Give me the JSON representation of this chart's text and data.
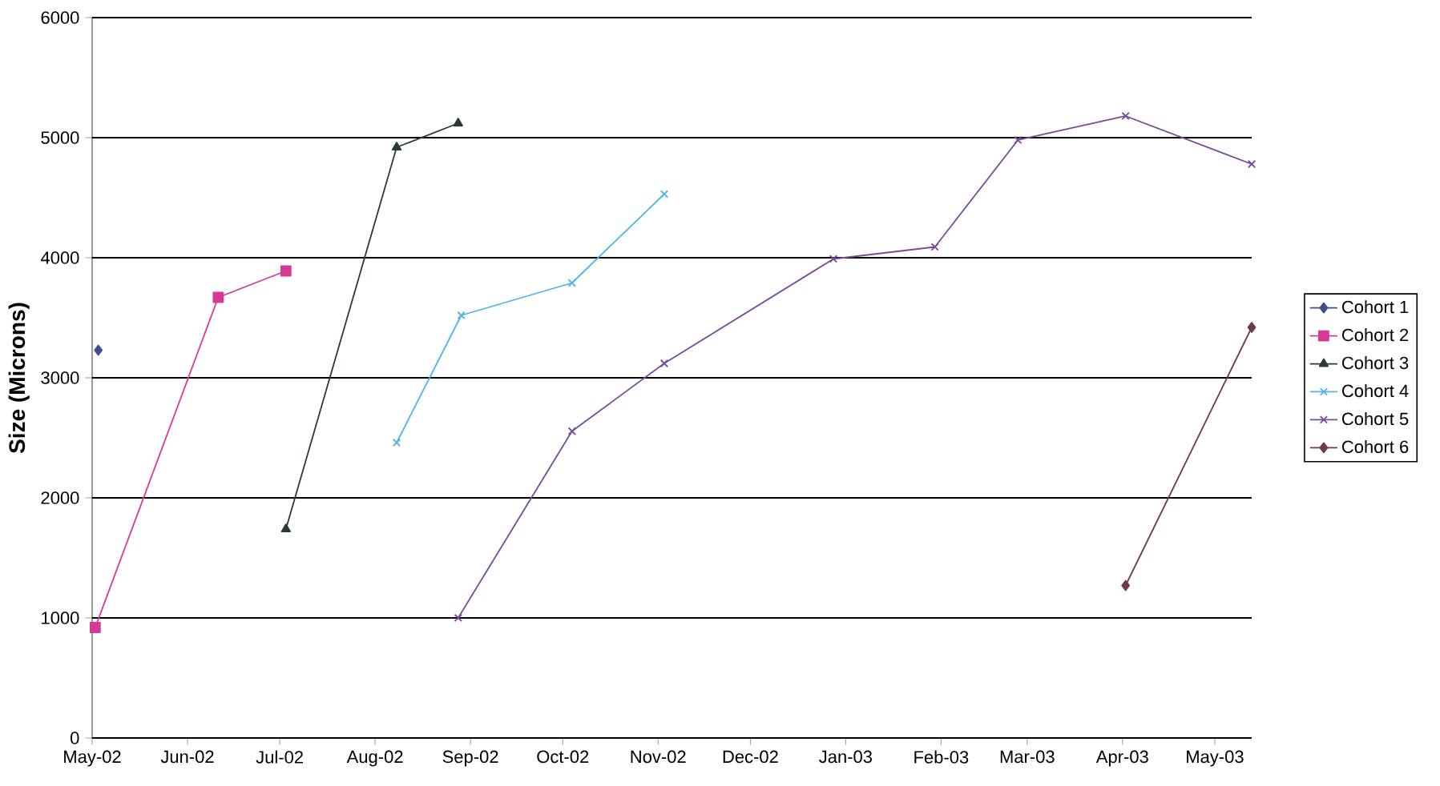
{
  "chart_data": {
    "type": "line",
    "ylabel": "Size (Microns)",
    "xlim": [
      "2002-05-01",
      "2003-05-13"
    ],
    "ylim": [
      0,
      6000
    ],
    "xticks": [
      {
        "value": "2002-05-01",
        "label": "May-02"
      },
      {
        "value": "2002-06-01",
        "label": "Jun-02"
      },
      {
        "value": "2002-07-01",
        "label": "Jul-02"
      },
      {
        "value": "2002-08-01",
        "label": "Aug-02"
      },
      {
        "value": "2002-09-01",
        "label": "Sep-02"
      },
      {
        "value": "2002-10-01",
        "label": "Oct-02"
      },
      {
        "value": "2002-11-01",
        "label": "Nov-02"
      },
      {
        "value": "2002-12-01",
        "label": "Dec-02"
      },
      {
        "value": "2003-01-01",
        "label": "Jan-03"
      },
      {
        "value": "2003-02-01",
        "label": "Feb-03"
      },
      {
        "value": "2003-03-01",
        "label": "Mar-03"
      },
      {
        "value": "2003-04-01",
        "label": "Apr-03"
      },
      {
        "value": "2003-05-01",
        "label": "May-03"
      }
    ],
    "yticks": [
      0,
      1000,
      2000,
      3000,
      4000,
      5000,
      6000
    ],
    "grid": "y",
    "legend": "right",
    "series": [
      {
        "name": "Cohort 1",
        "color": "#3f4f8f",
        "marker": "diamond",
        "x": [
          "2002-05-03"
        ],
        "values": [
          3230
        ]
      },
      {
        "name": "Cohort 2",
        "color": "#d63a96",
        "marker": "square",
        "x": [
          "2002-05-02",
          "2002-06-11",
          "2002-07-03"
        ],
        "values": [
          920,
          3670,
          3890
        ]
      },
      {
        "name": "Cohort 3",
        "color": "#2a3a3a",
        "marker": "triangle",
        "x": [
          "2002-07-03",
          "2002-08-08",
          "2002-08-28"
        ],
        "values": [
          1740,
          4920,
          5120
        ]
      },
      {
        "name": "Cohort 4",
        "color": "#4fb4e8",
        "marker": "cross",
        "x": [
          "2002-08-08",
          "2002-08-29",
          "2002-10-04",
          "2002-11-03"
        ],
        "values": [
          2460,
          3520,
          3790,
          4530
        ]
      },
      {
        "name": "Cohort 5",
        "color": "#7a4a9a",
        "marker": "cross",
        "x": [
          "2002-08-28",
          "2002-10-04",
          "2002-11-03",
          "2002-12-28",
          "2003-01-30",
          "2003-02-26",
          "2003-04-02",
          "2003-05-13"
        ],
        "values": [
          1000,
          2555,
          3120,
          3990,
          4090,
          4980,
          5180,
          4780
        ]
      },
      {
        "name": "Cohort 6",
        "color": "#6e3a50",
        "marker": "diamond",
        "x": [
          "2003-04-02",
          "2003-05-13"
        ],
        "values": [
          1270,
          3420
        ]
      }
    ]
  }
}
